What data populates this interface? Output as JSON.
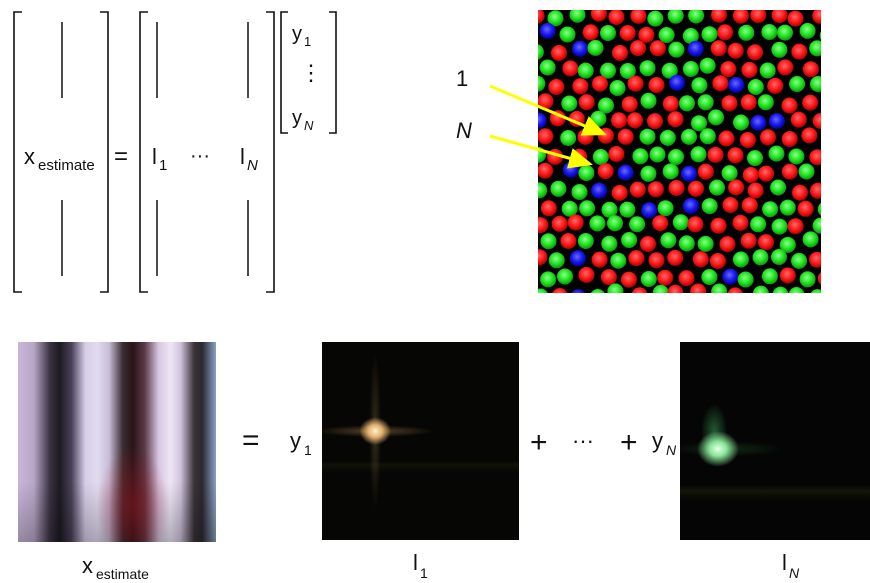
{
  "equation": {
    "x_symbol": "x",
    "x_subscript": "estimate",
    "equals": "=",
    "l_symbol": "l",
    "l_first_index": "1",
    "dots": "···",
    "l_last_index": "N",
    "y_symbol": "y",
    "y_first_index": "1",
    "y_vdots": "⋮",
    "y_last_index": "N"
  },
  "mosaic": {
    "arrow_label_1": "1",
    "arrow_label_N": "N",
    "colors": {
      "red": "#ff1a1a",
      "green": "#1ee61e",
      "blue": "#1a1aee",
      "background": "#000000",
      "arrow": "#ffff00"
    }
  },
  "bottom": {
    "equals": "=",
    "y_symbol": "y",
    "y_first_index": "1",
    "plus_1": "+",
    "dots": "···",
    "plus_2": "+",
    "y_last_index": "N",
    "caption_x_symbol": "x",
    "caption_x_subscript": "estimate",
    "caption_l_first_symbol": "l",
    "caption_l_first_index": "1",
    "caption_l_last_symbol": "l",
    "caption_l_last_index": "N"
  }
}
